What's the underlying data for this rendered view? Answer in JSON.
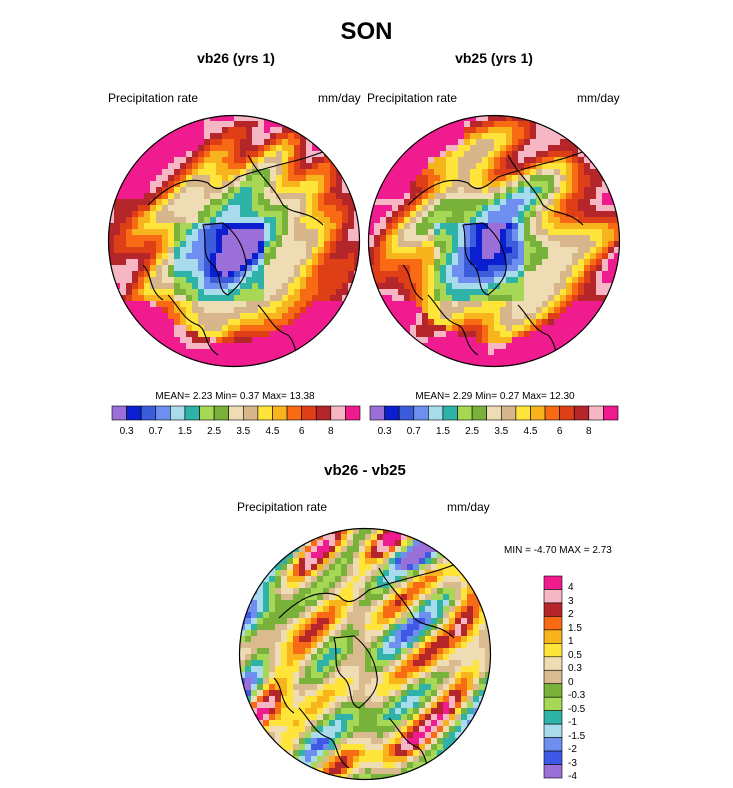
{
  "figure": {
    "title": "SON"
  },
  "colors": {
    "abs_palette": [
      "#9a6fd8",
      "#0b1fd0",
      "#3b5ddc",
      "#6f8ff0",
      "#a8dcec",
      "#2fb3a8",
      "#a6d855",
      "#79b23a",
      "#eedcb5",
      "#d6b68a",
      "#ffe43a",
      "#f7b41c",
      "#f86a13",
      "#de3f17",
      "#b5262b",
      "#f7b6c4",
      "#f01b8f"
    ],
    "diff_palette": [
      "#9a6fd8",
      "#3f59e6",
      "#6f8ff0",
      "#a8dcec",
      "#2fb3a8",
      "#a6d855",
      "#79b23a",
      "#d9bb8f",
      "#eedcb5",
      "#ffe43a",
      "#f7b41c",
      "#f86a13",
      "#b5262b",
      "#f7b6c4",
      "#f01b8f"
    ]
  },
  "chart_data": [
    {
      "type": "heatmap",
      "projection": "polar stereographic",
      "title": "vb26 (yrs 1)",
      "left_label": "Precipitation rate",
      "right_label": "mm/day",
      "stats_text": "MEAN=  2.23  Min=  0.37  Max= 13.38",
      "stats": {
        "mean": 2.23,
        "min": 0.37,
        "max": 13.38
      },
      "colorbar_levels": [
        0.3,
        0.5,
        0.7,
        1,
        1.5,
        2,
        2.5,
        3,
        3.5,
        4,
        4.5,
        5,
        6,
        7,
        8
      ],
      "colorbar_tick_labels": [
        "0.3",
        "0.7",
        "1.5",
        "2.5",
        "3.5",
        "4.5",
        "6",
        "8"
      ],
      "units": "mm/day"
    },
    {
      "type": "heatmap",
      "projection": "polar stereographic",
      "title": "vb25 (yrs 1)",
      "left_label": "Precipitation rate",
      "right_label": "mm/day",
      "stats_text": "MEAN=  2.29  Min=  0.27  Max= 12.30",
      "stats": {
        "mean": 2.29,
        "min": 0.27,
        "max": 12.3
      },
      "colorbar_levels": [
        0.3,
        0.5,
        0.7,
        1,
        1.5,
        2,
        2.5,
        3,
        3.5,
        4,
        4.5,
        5,
        6,
        7,
        8
      ],
      "colorbar_tick_labels": [
        "0.3",
        "0.7",
        "1.5",
        "2.5",
        "3.5",
        "4.5",
        "6",
        "8"
      ],
      "units": "mm/day"
    },
    {
      "type": "heatmap",
      "projection": "polar stereographic",
      "title": "vb26 - vb25",
      "left_label": "Precipitation rate",
      "right_label": "mm/day",
      "stats_text": "MIN =  -4.70 MAX =   2.73",
      "stats": {
        "min": -4.7,
        "max": 2.73
      },
      "colorbar_levels": [
        -4,
        -3,
        -2,
        -1.5,
        -1,
        -0.5,
        -0.3,
        0,
        0.3,
        0.5,
        1,
        1.5,
        2,
        3,
        4
      ],
      "colorbar_tick_labels": [
        "4",
        "3",
        "2",
        "1.5",
        "1",
        "0.5",
        "0.3",
        "0",
        "-0.3",
        "-0.5",
        "-1",
        "-1.5",
        "-2",
        "-3",
        "-4"
      ],
      "units": "mm/day"
    }
  ]
}
